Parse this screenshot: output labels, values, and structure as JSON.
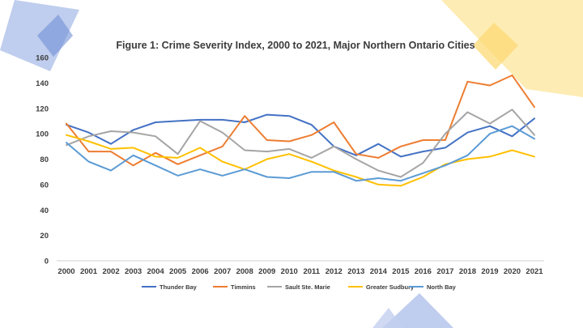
{
  "colors": {
    "background": "#ffffff",
    "decor_blue": "#a9bce8",
    "decor_blue_dark": "#6f8fd6",
    "decor_yellow": "#fde9a6",
    "decor_yellow_dark": "#fcd976",
    "axis": "#d0d0d0"
  },
  "chart_data": {
    "type": "line",
    "title": "Figure 1: Crime Severity Index, 2000 to 2021, Major Northern Ontario Cities",
    "xlabel": "",
    "ylabel": "",
    "ylim": [
      0,
      160
    ],
    "yticks": [
      0,
      20,
      40,
      60,
      80,
      100,
      120,
      140,
      160
    ],
    "grid": false,
    "legend": "bottom",
    "x": [
      "2000",
      "2001",
      "2002",
      "2003",
      "2004",
      "2005",
      "2006",
      "2007",
      "2008",
      "2009",
      "2010",
      "2011",
      "2012",
      "2013",
      "2014",
      "2015",
      "2016",
      "2017",
      "2018",
      "2019",
      "2020",
      "2021"
    ],
    "series": [
      {
        "name": "Thunder Bay",
        "color": "#4472c4",
        "values": [
          107,
          101,
          92,
          103,
          109,
          110,
          111,
          111,
          109,
          115,
          114,
          107,
          90,
          83,
          92,
          82,
          86,
          89,
          101,
          106,
          98,
          112
        ]
      },
      {
        "name": "Timmins",
        "color": "#ed7d31",
        "values": [
          108,
          86,
          86,
          75,
          85,
          76,
          83,
          90,
          114,
          95,
          94,
          99,
          109,
          84,
          81,
          90,
          95,
          95,
          141,
          138,
          146,
          121
        ]
      },
      {
        "name": "Sault Ste. Marie",
        "color": "#a5a5a5",
        "values": [
          91,
          98,
          102,
          101,
          98,
          84,
          110,
          101,
          87,
          86,
          88,
          81,
          90,
          80,
          71,
          66,
          77,
          100,
          117,
          108,
          119,
          99
        ]
      },
      {
        "name": "Greater Sudbury",
        "color": "#ffc000",
        "values": [
          99,
          94,
          88,
          89,
          82,
          81,
          89,
          78,
          72,
          80,
          84,
          78,
          71,
          66,
          60,
          59,
          66,
          76,
          80,
          82,
          87,
          82
        ]
      },
      {
        "name": "North Bay",
        "color": "#5b9bd5",
        "values": [
          93,
          78,
          71,
          83,
          75,
          67,
          72,
          67,
          72,
          66,
          65,
          70,
          70,
          63,
          65,
          63,
          69,
          75,
          83,
          100,
          106,
          96
        ]
      }
    ]
  }
}
